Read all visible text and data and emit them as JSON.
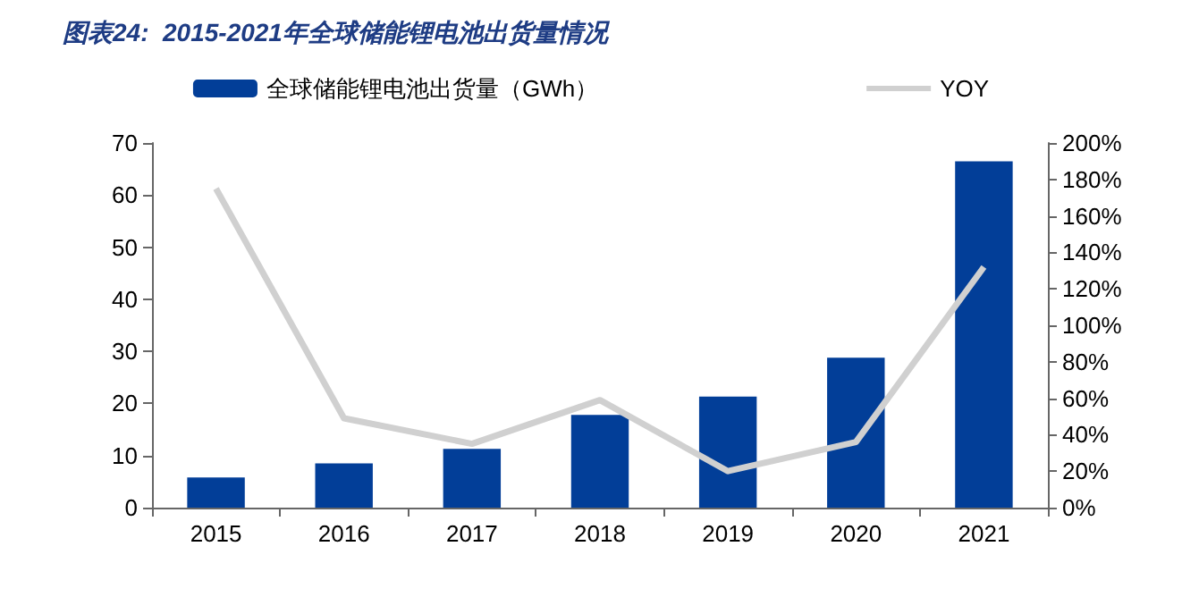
{
  "chart_data": {
    "type": "bar",
    "title": "图表24:  2015-2021年全球储能锂电池出货量情况",
    "categories": [
      "2015",
      "2016",
      "2017",
      "2018",
      "2019",
      "2020",
      "2021"
    ],
    "series": [
      {
        "name": "全球储能锂电池出货量（GWh）",
        "color": "#023e98",
        "values": [
          5.8,
          8.5,
          11.3,
          17.8,
          21.3,
          28.8,
          66.5
        ]
      },
      {
        "name": "YOY",
        "type": "line",
        "axis": "y2",
        "color": "#d0d0d0",
        "values": [
          175,
          49,
          35,
          59,
          20,
          36,
          132
        ]
      }
    ],
    "ylim": [
      0,
      70
    ],
    "yticks": [
      0,
      10,
      20,
      30,
      40,
      50,
      60,
      70
    ],
    "y2lim": [
      0,
      200
    ],
    "y2ticks": [
      {
        "value": 0,
        "label": "0%"
      },
      {
        "value": 20,
        "label": "20%"
      },
      {
        "value": 40,
        "label": "40%"
      },
      {
        "value": 60,
        "label": "60%"
      },
      {
        "value": 80,
        "label": "80%"
      },
      {
        "value": 100,
        "label": "100%"
      },
      {
        "value": 120,
        "label": "120%"
      },
      {
        "value": 140,
        "label": "140%"
      },
      {
        "value": 160,
        "label": "160%"
      },
      {
        "value": 180,
        "label": "180%"
      },
      {
        "value": 200,
        "label": "200%"
      }
    ],
    "grid": false,
    "legend": "top",
    "marker": "none"
  }
}
